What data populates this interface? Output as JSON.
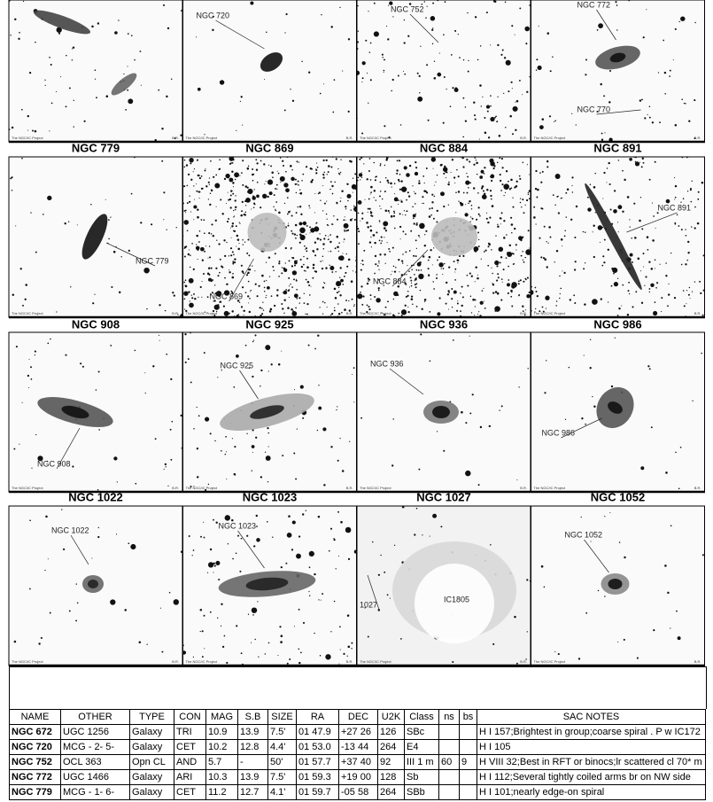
{
  "credit": "The NGC/IC Project",
  "initials": "B.R.",
  "panels": [
    {
      "labels": []
    },
    {
      "labels": [
        "NGC 720"
      ]
    },
    {
      "labels": [
        "NGC 752"
      ]
    },
    {
      "labels": [
        "NGC 772",
        "NGC 770"
      ]
    },
    {
      "title": "NGC 779",
      "labels": [
        "NGC 779"
      ]
    },
    {
      "title": "NGC 869",
      "labels": [
        "NGC 869"
      ]
    },
    {
      "title": "NGC 884",
      "labels": [
        "NGC 884"
      ]
    },
    {
      "title": "NGC 891",
      "labels": [
        "NGC 891"
      ]
    },
    {
      "title": "NGC 908",
      "labels": [
        "NGC 908"
      ]
    },
    {
      "title": "NGC 925",
      "labels": [
        "NGC 925"
      ]
    },
    {
      "title": "NGC 936",
      "labels": [
        "NGC 936"
      ]
    },
    {
      "title": "NGC 986",
      "labels": [
        "NGC 986"
      ]
    },
    {
      "title": "NGC 1022",
      "labels": [
        "NGC 1022"
      ]
    },
    {
      "title": "NGC 1023",
      "labels": [
        "NGC 1023"
      ]
    },
    {
      "title": "NGC 1027",
      "labels": [
        "1027",
        "IC1805"
      ]
    },
    {
      "title": "NGC 1052",
      "labels": [
        "NGC 1052"
      ]
    }
  ],
  "table": {
    "header": [
      "NAME",
      "OTHER",
      "TYPE",
      "CON",
      "MAG",
      "S.B",
      "SIZE",
      "RA",
      "DEC",
      "U2K",
      "Class",
      "ns",
      "bs",
      "SAC NOTES"
    ],
    "rows": [
      [
        "NGC 672",
        "UGC 1256",
        "Galaxy",
        "TRI",
        "10.9",
        "13.9",
        "7.5'",
        "01 47.9",
        "+27 26",
        "126",
        "SBc",
        null,
        null,
        "H I 157;Brightest in group;coarse spiral . P w IC172"
      ],
      [
        "NGC 720",
        "MCG - 2- 5-",
        "Galaxy",
        "CET",
        "10.2",
        "12.8",
        "4.4'",
        "01 53.0",
        "-13 44",
        "264",
        "E4",
        null,
        null,
        "H I 105"
      ],
      [
        "NGC 752",
        "OCL 363",
        "Opn CL",
        "AND",
        "5.7",
        "-",
        "50'",
        "01 57.7",
        "+37 40",
        "92",
        "III 1 m",
        "60",
        "9",
        "H VIII 32;Best in RFT or binocs;lr scattered cl 70* m"
      ],
      [
        "NGC 772",
        "UGC 1466",
        "Galaxy",
        "ARI",
        "10.3",
        "13.9",
        "7.5'",
        "01 59.3",
        "+19 00",
        "128",
        "Sb",
        null,
        null,
        "H I 112;Several tightly coiled arms br on NW side"
      ],
      [
        "NGC 779",
        "MCG - 1- 6-",
        "Galaxy",
        "CET",
        "11.2",
        "12.7",
        "4.1'",
        "01 59.7",
        "-05 58",
        "264",
        "SBb",
        null,
        null,
        "H I 101;nearly edge-on spiral"
      ]
    ]
  }
}
